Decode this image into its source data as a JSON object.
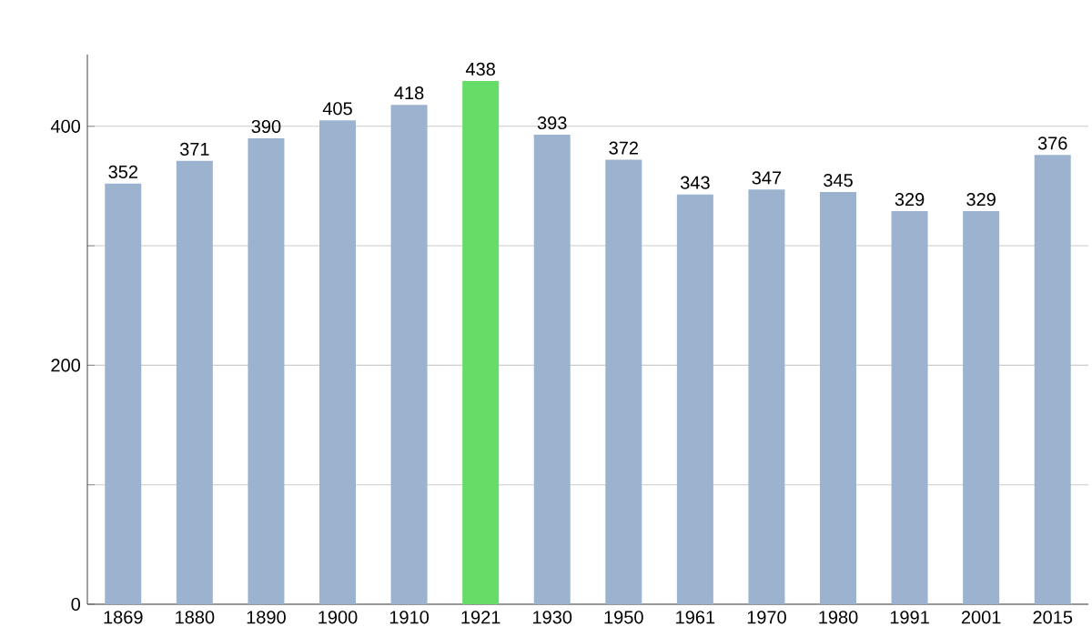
{
  "chart_data": {
    "type": "bar",
    "categories": [
      "1869",
      "1880",
      "1890",
      "1900",
      "1910",
      "1921",
      "1930",
      "1950",
      "1961",
      "1970",
      "1980",
      "1991",
      "2001",
      "2015"
    ],
    "values": [
      352,
      371,
      390,
      405,
      418,
      438,
      393,
      372,
      343,
      347,
      345,
      329,
      329,
      376
    ],
    "colors": [
      "#9bb3cf",
      "#9bb3cf",
      "#9bb3cf",
      "#9bb3cf",
      "#9bb3cf",
      "#66dd66",
      "#9bb3cf",
      "#9bb3cf",
      "#9bb3cf",
      "#9bb3cf",
      "#9bb3cf",
      "#9bb3cf",
      "#9bb3cf",
      "#9bb3cf"
    ],
    "ylim": [
      0,
      460
    ],
    "yticks": [
      0,
      {
        "value": 100,
        "label": null
      },
      200,
      {
        "value": 300,
        "label": null
      },
      400
    ],
    "grid": true,
    "data_labels": true
  }
}
